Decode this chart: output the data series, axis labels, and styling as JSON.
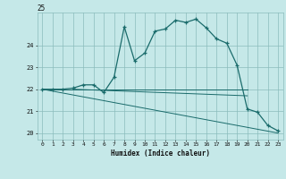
{
  "title": "25",
  "xlabel": "Humidex (Indice chaleur)",
  "background_color": "#c5e8e8",
  "grid_color": "#8bbcbc",
  "line_color": "#1a6b6b",
  "xlim": [
    -0.5,
    23.5
  ],
  "ylim": [
    19.7,
    25.5
  ],
  "yticks": [
    20,
    21,
    22,
    23,
    24
  ],
  "xticks": [
    0,
    1,
    2,
    3,
    4,
    5,
    6,
    7,
    8,
    9,
    10,
    11,
    12,
    13,
    14,
    15,
    16,
    17,
    18,
    19,
    20,
    21,
    22,
    23
  ],
  "main_x": [
    0,
    1,
    2,
    3,
    4,
    5,
    6,
    7,
    8,
    9,
    10,
    11,
    12,
    13,
    14,
    15,
    16,
    17,
    18,
    19,
    20,
    21,
    22,
    23
  ],
  "main_y": [
    22.0,
    22.0,
    22.0,
    22.05,
    22.2,
    22.2,
    21.85,
    22.55,
    24.85,
    23.3,
    23.65,
    24.65,
    24.75,
    25.15,
    25.05,
    25.2,
    24.8,
    24.3,
    24.1,
    23.1,
    21.1,
    20.95,
    20.35,
    20.1
  ],
  "trend1_x": [
    0,
    20
  ],
  "trend1_y": [
    22.0,
    22.0
  ],
  "trend2_x": [
    0,
    23
  ],
  "trend2_y": [
    22.0,
    20.0
  ],
  "trend3_x": [
    3,
    20
  ],
  "trend3_y": [
    22.0,
    21.7
  ],
  "trend4_x": [
    3,
    20
  ],
  "trend4_y": [
    22.0,
    22.0
  ]
}
